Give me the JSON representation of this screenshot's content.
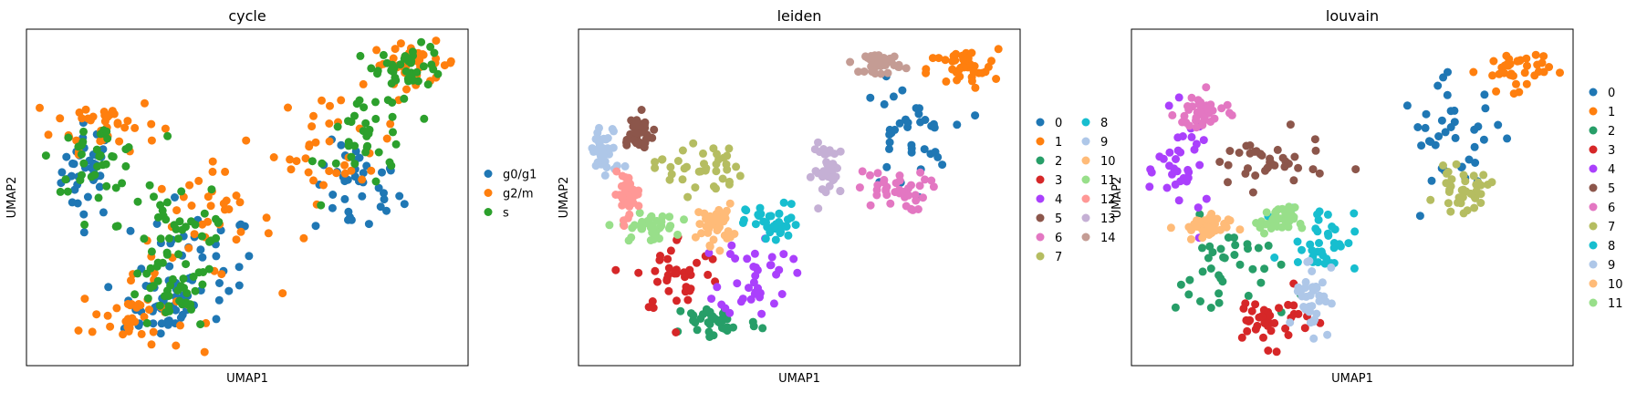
{
  "figure": {
    "colors": {
      "g0/g1": "#1f77b4",
      "g2/m": "#ff7f0e",
      "s": "#2ca02c",
      "0": "#1f77b4",
      "1": "#ff7f0e",
      "2": "#279e68",
      "3": "#d62728",
      "4": "#aa40fc",
      "5": "#8c564b",
      "6": "#e377c2",
      "7": "#b5bd61",
      "8": "#17becf",
      "9": "#aec7e8",
      "10": "#ffbb78",
      "11": "#98df8a",
      "12": "#ff9896",
      "13": "#c5b0d5",
      "14": "#c49c94"
    }
  },
  "chart_data": [
    {
      "type": "scatter",
      "title": "cycle",
      "xlabel": "UMAP1",
      "ylabel": "UMAP2",
      "xlim": [
        0,
        100
      ],
      "ylim": [
        0,
        100
      ],
      "grid": false,
      "legend": {
        "placement": "right",
        "entries": [
          "g0/g1",
          "g2/m",
          "s"
        ]
      },
      "clusters": [
        {
          "label": "g0/g1",
          "x": 14,
          "y": 58,
          "sx": 3,
          "sy": 7
        },
        {
          "label": "g0/g1",
          "x": 38,
          "y": 30,
          "sx": 7,
          "sy": 8
        },
        {
          "label": "g0/g1",
          "x": 75,
          "y": 52,
          "sx": 5,
          "sy": 7
        },
        {
          "label": "g0/g1",
          "x": 30,
          "y": 18,
          "sx": 5,
          "sy": 5
        },
        {
          "label": "g2/m",
          "x": 18,
          "y": 72,
          "sx": 6,
          "sy": 4
        },
        {
          "label": "g2/m",
          "x": 24,
          "y": 14,
          "sx": 6,
          "sy": 5
        },
        {
          "label": "g2/m",
          "x": 70,
          "y": 65,
          "sx": 7,
          "sy": 8
        },
        {
          "label": "g2/m",
          "x": 88,
          "y": 90,
          "sx": 5,
          "sy": 3
        },
        {
          "label": "g2/m",
          "x": 40,
          "y": 42,
          "sx": 8,
          "sy": 8
        },
        {
          "label": "s",
          "x": 35,
          "y": 42,
          "sx": 7,
          "sy": 8
        },
        {
          "label": "s",
          "x": 32,
          "y": 20,
          "sx": 5,
          "sy": 5
        },
        {
          "label": "s",
          "x": 78,
          "y": 68,
          "sx": 5,
          "sy": 8
        },
        {
          "label": "s",
          "x": 87,
          "y": 89,
          "sx": 4,
          "sy": 3
        },
        {
          "label": "s",
          "x": 16,
          "y": 62,
          "sx": 5,
          "sy": 5
        }
      ]
    },
    {
      "type": "scatter",
      "title": "leiden",
      "xlabel": "UMAP1",
      "ylabel": "UMAP2",
      "xlim": [
        0,
        100
      ],
      "ylim": [
        0,
        100
      ],
      "grid": false,
      "legend": {
        "placement": "right",
        "entries": [
          "0",
          "1",
          "2",
          "3",
          "4",
          "5",
          "6",
          "7",
          "8",
          "9",
          "10",
          "11",
          "12",
          "13",
          "14"
        ]
      },
      "clusters": [
        {
          "label": "0",
          "x": 74,
          "y": 68,
          "sx": 5,
          "sy": 8
        },
        {
          "label": "1",
          "x": 87,
          "y": 88,
          "sx": 4,
          "sy": 3
        },
        {
          "label": "2",
          "x": 31,
          "y": 13,
          "sx": 5,
          "sy": 3
        },
        {
          "label": "3",
          "x": 23,
          "y": 27,
          "sx": 5,
          "sy": 6
        },
        {
          "label": "4",
          "x": 40,
          "y": 27,
          "sx": 4,
          "sy": 6
        },
        {
          "label": "5",
          "x": 13,
          "y": 69,
          "sx": 2,
          "sy": 3
        },
        {
          "label": "6",
          "x": 71,
          "y": 52,
          "sx": 4,
          "sy": 3
        },
        {
          "label": "7",
          "x": 27,
          "y": 59,
          "sx": 5,
          "sy": 4
        },
        {
          "label": "8",
          "x": 44,
          "y": 42,
          "sx": 3,
          "sy": 3
        },
        {
          "label": "9",
          "x": 6,
          "y": 63,
          "sx": 2,
          "sy": 4
        },
        {
          "label": "10",
          "x": 31,
          "y": 42,
          "sx": 2,
          "sy": 3
        },
        {
          "label": "11",
          "x": 16,
          "y": 41,
          "sx": 3,
          "sy": 2
        },
        {
          "label": "12",
          "x": 11,
          "y": 51,
          "sx": 1.5,
          "sy": 3
        },
        {
          "label": "13",
          "x": 57,
          "y": 58,
          "sx": 2,
          "sy": 4
        },
        {
          "label": "14",
          "x": 69,
          "y": 90,
          "sx": 2,
          "sy": 1.5
        }
      ]
    },
    {
      "type": "scatter",
      "title": "louvain",
      "xlabel": "UMAP1",
      "ylabel": "UMAP2",
      "xlim": [
        0,
        100
      ],
      "ylim": [
        0,
        100
      ],
      "grid": false,
      "legend": {
        "placement": "right",
        "entries": [
          "0",
          "1",
          "2",
          "3",
          "4",
          "5",
          "6",
          "7",
          "8",
          "9",
          "10",
          "11"
        ]
      },
      "clusters": [
        {
          "label": "0",
          "x": 73,
          "y": 68,
          "sx": 6,
          "sy": 8
        },
        {
          "label": "1",
          "x": 87,
          "y": 88,
          "sx": 4,
          "sy": 3
        },
        {
          "label": "2",
          "x": 22,
          "y": 27,
          "sx": 6,
          "sy": 8
        },
        {
          "label": "3",
          "x": 31,
          "y": 14,
          "sx": 5,
          "sy": 4
        },
        {
          "label": "4",
          "x": 12,
          "y": 58,
          "sx": 3,
          "sy": 8
        },
        {
          "label": "5",
          "x": 30,
          "y": 60,
          "sx": 7,
          "sy": 4
        },
        {
          "label": "6",
          "x": 16,
          "y": 75,
          "sx": 3,
          "sy": 3
        },
        {
          "label": "7",
          "x": 75,
          "y": 52,
          "sx": 3,
          "sy": 3
        },
        {
          "label": "8",
          "x": 43,
          "y": 38,
          "sx": 4,
          "sy": 5
        },
        {
          "label": "9",
          "x": 41,
          "y": 22,
          "sx": 2,
          "sy": 6
        },
        {
          "label": "10",
          "x": 16,
          "y": 41,
          "sx": 3,
          "sy": 2
        },
        {
          "label": "11",
          "x": 33,
          "y": 43,
          "sx": 2,
          "sy": 2
        }
      ]
    }
  ]
}
